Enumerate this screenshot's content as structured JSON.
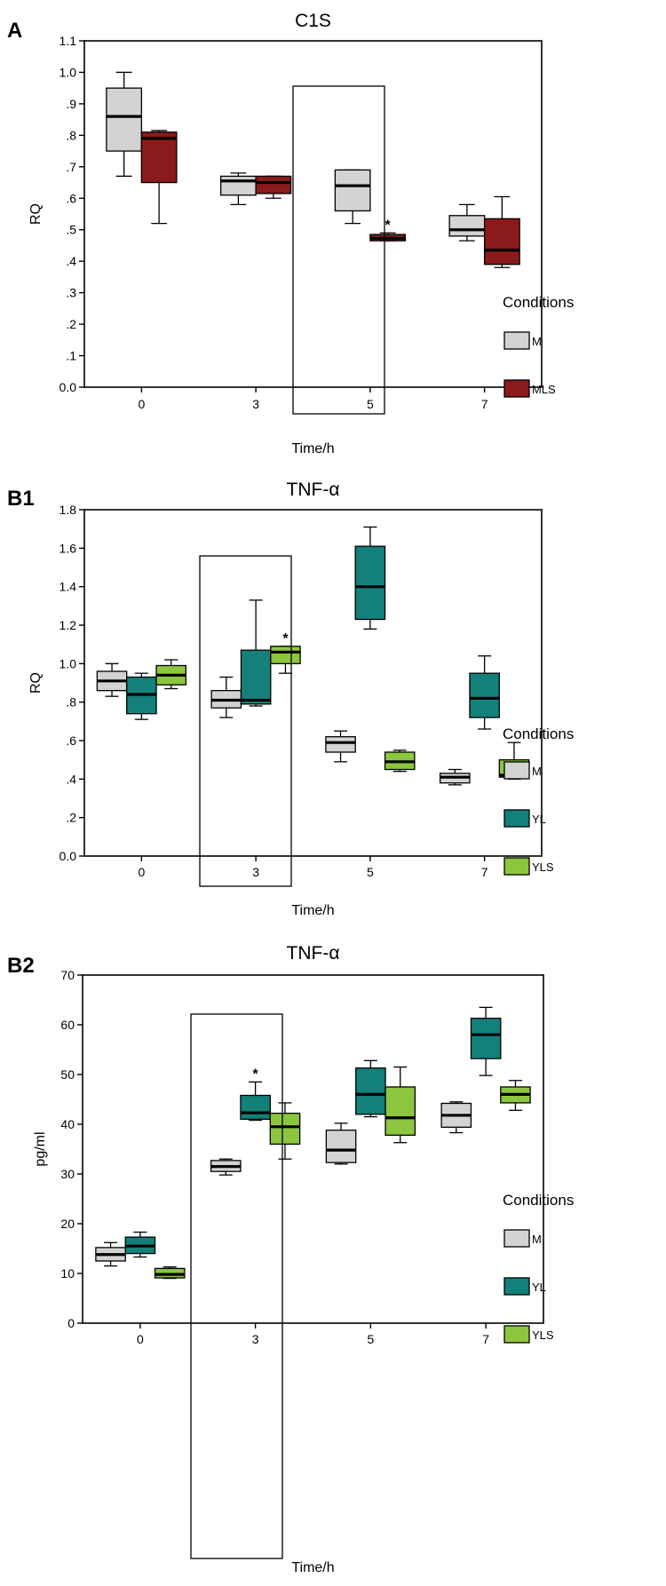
{
  "panels": [
    {
      "panel_label": "A",
      "legend": {
        "title": "Conditions",
        "entries": [
          {
            "label": "M",
            "color": "#d3d3d3"
          },
          {
            "label": "MLS",
            "color": "#8b1a1a"
          }
        ]
      },
      "chart_data": {
        "type": "boxplot",
        "title": "C1S",
        "xlabel": "Time/h",
        "ylabel": "RQ",
        "categories": [
          "0",
          "3",
          "5",
          "7"
        ],
        "ylim": [
          0,
          1.1
        ],
        "yticks": [
          0,
          0.1,
          0.2,
          0.3,
          0.4,
          0.5,
          0.6,
          0.7,
          0.8,
          0.9,
          1.0,
          1.1
        ],
        "ytick_labels": [
          "0.0",
          ".1",
          ".2",
          ".3",
          ".4",
          ".5",
          ".6",
          ".7",
          ".8",
          ".9",
          "1.0",
          "1.1"
        ],
        "highlight_category": "5",
        "legend_position": "right",
        "series": [
          {
            "name": "M",
            "color": "#d3d3d3",
            "boxes": [
              {
                "min": 0.67,
                "q1": 0.75,
                "median": 0.86,
                "q3": 0.95,
                "max": 1.0
              },
              {
                "min": 0.58,
                "q1": 0.61,
                "median": 0.655,
                "q3": 0.67,
                "max": 0.68
              },
              {
                "min": 0.52,
                "q1": 0.56,
                "median": 0.64,
                "q3": 0.69,
                "max": 0.69
              },
              {
                "min": 0.465,
                "q1": 0.48,
                "median": 0.5,
                "q3": 0.545,
                "max": 0.58
              }
            ]
          },
          {
            "name": "MLS",
            "color": "#8b1a1a",
            "boxes": [
              {
                "min": 0.52,
                "q1": 0.65,
                "median": 0.79,
                "q3": 0.81,
                "max": 0.815
              },
              {
                "min": 0.6,
                "q1": 0.615,
                "median": 0.65,
                "q3": 0.67,
                "max": 0.67
              },
              {
                "min": 0.465,
                "q1": 0.465,
                "median": 0.473,
                "q3": 0.485,
                "max": 0.49,
                "star": true
              },
              {
                "min": 0.38,
                "q1": 0.39,
                "median": 0.435,
                "q3": 0.535,
                "max": 0.605
              }
            ]
          }
        ]
      }
    },
    {
      "panel_label": "B1",
      "legend": {
        "title": "Conditions",
        "entries": [
          {
            "label": "M",
            "color": "#d3d3d3"
          },
          {
            "label": "YL",
            "color": "#14807a"
          },
          {
            "label": "YLS",
            "color": "#8cc63f"
          }
        ]
      },
      "chart_data": {
        "type": "boxplot",
        "title": "TNF-α",
        "xlabel": "Time/h",
        "ylabel": "RQ",
        "categories": [
          "0",
          "3",
          "5",
          "7"
        ],
        "ylim": [
          0,
          1.8
        ],
        "yticks": [
          0,
          0.2,
          0.4,
          0.6,
          0.8,
          1.0,
          1.2,
          1.4,
          1.6,
          1.8
        ],
        "ytick_labels": [
          "0.0",
          ".2",
          ".4",
          ".6",
          ".8",
          "1.0",
          "1.2",
          "1.4",
          "1.6",
          "1.8"
        ],
        "highlight_category": "3",
        "legend_position": "right",
        "series": [
          {
            "name": "M",
            "color": "#d3d3d3",
            "boxes": [
              {
                "min": 0.83,
                "q1": 0.86,
                "median": 0.91,
                "q3": 0.96,
                "max": 1.0
              },
              {
                "min": 0.72,
                "q1": 0.77,
                "median": 0.81,
                "q3": 0.86,
                "max": 0.93
              },
              {
                "min": 0.49,
                "q1": 0.54,
                "median": 0.59,
                "q3": 0.62,
                "max": 0.65
              },
              {
                "min": 0.37,
                "q1": 0.38,
                "median": 0.41,
                "q3": 0.43,
                "max": 0.45
              }
            ]
          },
          {
            "name": "YL",
            "color": "#14807a",
            "boxes": [
              {
                "min": 0.71,
                "q1": 0.74,
                "median": 0.84,
                "q3": 0.93,
                "max": 0.95
              },
              {
                "min": 0.78,
                "q1": 0.79,
                "median": 0.81,
                "q3": 1.07,
                "max": 1.33
              },
              {
                "min": 1.18,
                "q1": 1.23,
                "median": 1.4,
                "q3": 1.61,
                "max": 1.71
              },
              {
                "min": 0.66,
                "q1": 0.72,
                "median": 0.82,
                "q3": 0.95,
                "max": 1.04
              }
            ]
          },
          {
            "name": "YLS",
            "color": "#8cc63f",
            "boxes": [
              {
                "min": 0.87,
                "q1": 0.89,
                "median": 0.94,
                "q3": 0.99,
                "max": 1.02
              },
              {
                "min": 0.95,
                "q1": 1.0,
                "median": 1.06,
                "q3": 1.09,
                "max": 1.09,
                "star": true
              },
              {
                "min": 0.44,
                "q1": 0.45,
                "median": 0.49,
                "q3": 0.54,
                "max": 0.55
              },
              {
                "min": 0.4,
                "q1": 0.41,
                "median": 0.42,
                "q3": 0.5,
                "max": 0.59
              }
            ]
          }
        ]
      }
    },
    {
      "panel_label": "B2",
      "legend": {
        "title": "Conditions",
        "entries": [
          {
            "label": "M",
            "color": "#d3d3d3"
          },
          {
            "label": "YL",
            "color": "#14807a"
          },
          {
            "label": "YLS",
            "color": "#8cc63f"
          }
        ]
      },
      "chart_data": {
        "type": "boxplot",
        "title": "TNF-α",
        "xlabel": "Time/h",
        "ylabel": "pg/ml",
        "categories": [
          "0",
          "3",
          "5",
          "7"
        ],
        "ylim": [
          0,
          70
        ],
        "yticks": [
          0,
          10,
          20,
          30,
          40,
          50,
          60,
          70
        ],
        "ytick_labels": [
          "0",
          "10",
          "20",
          "30",
          "40",
          "50",
          "60",
          "70"
        ],
        "highlight_category": "3",
        "legend_position": "right",
        "series": [
          {
            "name": "M",
            "color": "#d3d3d3",
            "boxes": [
              {
                "min": 11.5,
                "q1": 12.5,
                "median": 13.8,
                "q3": 15.2,
                "max": 16.2
              },
              {
                "min": 29.8,
                "q1": 30.5,
                "median": 31.5,
                "q3": 32.7,
                "max": 33.0
              },
              {
                "min": 32.0,
                "q1": 32.3,
                "median": 34.8,
                "q3": 38.8,
                "max": 40.2
              },
              {
                "min": 38.3,
                "q1": 39.4,
                "median": 41.8,
                "q3": 44.2,
                "max": 44.5
              }
            ]
          },
          {
            "name": "YL",
            "color": "#14807a",
            "boxes": [
              {
                "min": 13.3,
                "q1": 14.0,
                "median": 15.5,
                "q3": 17.3,
                "max": 18.3
              },
              {
                "min": 40.8,
                "q1": 41.0,
                "median": 42.3,
                "q3": 45.8,
                "max": 48.5,
                "star": true
              },
              {
                "min": 41.5,
                "q1": 42.0,
                "median": 46.0,
                "q3": 51.3,
                "max": 52.8
              },
              {
                "min": 49.8,
                "q1": 53.2,
                "median": 58.0,
                "q3": 61.3,
                "max": 63.5
              }
            ]
          },
          {
            "name": "YLS",
            "color": "#8cc63f",
            "boxes": [
              {
                "min": 9.0,
                "q1": 9.1,
                "median": 9.8,
                "q3": 11.0,
                "max": 11.3
              },
              {
                "min": 33.0,
                "q1": 36.0,
                "median": 39.5,
                "q3": 42.2,
                "max": 44.3
              },
              {
                "min": 36.3,
                "q1": 37.8,
                "median": 41.3,
                "q3": 47.5,
                "max": 51.5
              },
              {
                "min": 42.8,
                "q1": 44.3,
                "median": 46.0,
                "q3": 47.5,
                "max": 48.8
              }
            ]
          }
        ]
      }
    }
  ]
}
